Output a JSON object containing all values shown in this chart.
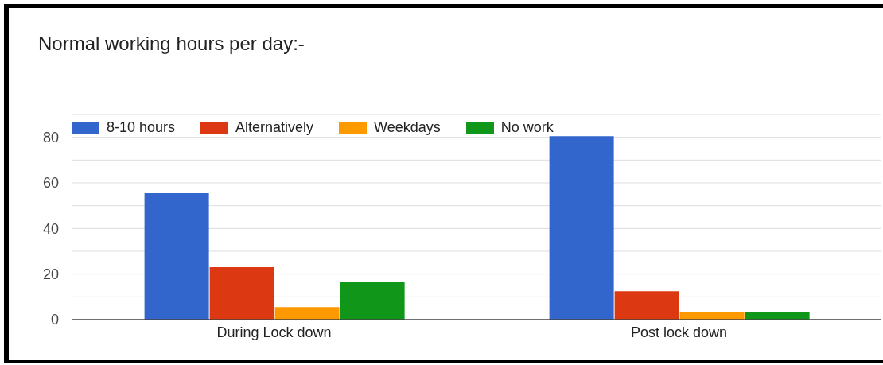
{
  "chart_data": {
    "type": "bar",
    "title": "Normal working hours per day:-",
    "categories": [
      "During Lock down",
      "Post lock down"
    ],
    "series": [
      {
        "name": "8-10 hours",
        "color": "#3366cc",
        "values": [
          55.5,
          80.5
        ]
      },
      {
        "name": "Alternatively",
        "color": "#dc3912",
        "values": [
          23,
          12.5
        ]
      },
      {
        "name": "Weekdays",
        "color": "#ff9900",
        "values": [
          5.5,
          3.5
        ]
      },
      {
        "name": "No work",
        "color": "#109618",
        "values": [
          16.5,
          3.5
        ]
      }
    ],
    "ylim": [
      0,
      90
    ],
    "yticks": [
      0,
      {
        "value": 10,
        "label": null
      },
      20,
      {
        "value": 30,
        "label": null
      },
      40,
      {
        "value": 50,
        "label": null
      },
      60,
      {
        "value": 70,
        "label": null
      },
      80,
      {
        "value": 90,
        "label": null
      }
    ],
    "grid": "y",
    "legend": "top left"
  }
}
